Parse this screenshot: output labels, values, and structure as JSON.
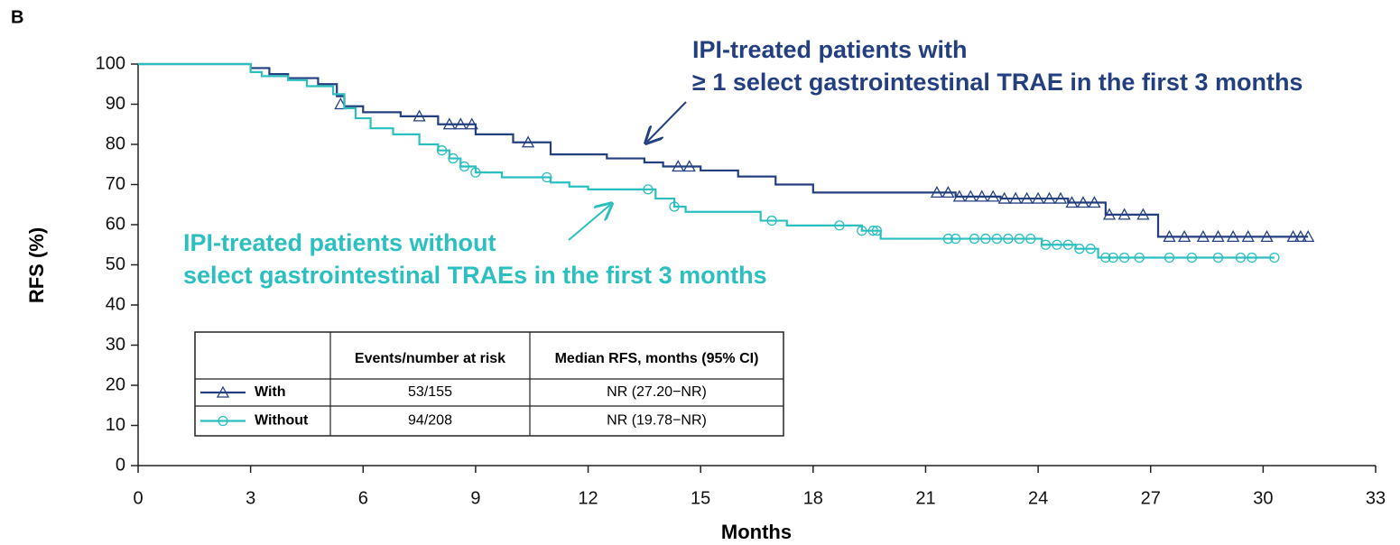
{
  "panel_label": "B",
  "chart_data": {
    "type": "line",
    "xlabel": "Months",
    "ylabel": "RFS (%)",
    "xlim": [
      0,
      33
    ],
    "ylim": [
      0,
      100
    ],
    "xticks": [
      0,
      3,
      6,
      9,
      12,
      15,
      18,
      21,
      24,
      27,
      30,
      33
    ],
    "yticks": [
      0,
      10,
      20,
      30,
      40,
      50,
      60,
      70,
      80,
      90,
      100
    ],
    "annotations": [
      {
        "lines": [
          "IPI-treated patients with",
          "≥ 1 select gastrointestinal TRAE in the first 3 months"
        ],
        "color": "#233f80"
      },
      {
        "lines": [
          "IPI-treated patients without",
          "select gastrointestinal TRAEs in the first 3 months"
        ],
        "color": "#2bbfbf"
      }
    ],
    "series": [
      {
        "name": "With",
        "color": "#233f80",
        "marker": "triangle",
        "x": [
          0,
          3,
          3,
          3.5,
          3.5,
          4,
          4,
          4.8,
          4.8,
          5.3,
          5.3,
          5.5,
          5.5,
          6,
          6,
          7,
          7,
          8,
          8,
          9,
          9,
          10,
          10,
          11,
          11,
          12.5,
          12.5,
          13.5,
          13.5,
          14,
          14,
          15,
          15,
          16,
          16,
          17,
          17,
          18,
          18,
          21.8,
          21.8,
          23,
          23,
          24.8,
          24.8,
          25.8,
          25.8,
          27.2,
          27.2,
          31.2
        ],
        "values": [
          100,
          100,
          99,
          99,
          97.5,
          97.5,
          96.5,
          96.5,
          95,
          95,
          92,
          92,
          89.5,
          89.5,
          88,
          88,
          87,
          87,
          85,
          85,
          82.5,
          82.5,
          80.5,
          80.5,
          77.5,
          77.5,
          76.5,
          76.5,
          75.5,
          75.5,
          74.5,
          74.5,
          73.5,
          73.5,
          72,
          72,
          70,
          70,
          68,
          68,
          67,
          67,
          66.5,
          66.5,
          65.5,
          65.5,
          62.5,
          62.5,
          57,
          57
        ],
        "censor_x": [
          5.4,
          7.5,
          8.3,
          8.6,
          8.9,
          10.4,
          14.4,
          14.7,
          21.3,
          21.6,
          21.9,
          22.2,
          22.5,
          22.8,
          23.1,
          23.4,
          23.7,
          24.0,
          24.3,
          24.6,
          24.9,
          25.2,
          25.5,
          25.9,
          26.3,
          26.8,
          27.5,
          27.9,
          28.4,
          28.8,
          29.2,
          29.6,
          30.1,
          30.8,
          31.0,
          31.2
        ],
        "censor_values": [
          90,
          87,
          85,
          85,
          85,
          80.5,
          74.5,
          74.5,
          68,
          68,
          67,
          67,
          67,
          67,
          66.5,
          66.5,
          66.5,
          66.5,
          66.5,
          66.5,
          65.5,
          65.5,
          65.5,
          62.5,
          62.5,
          62.5,
          57,
          57,
          57,
          57,
          57,
          57,
          57,
          57,
          57,
          57
        ]
      },
      {
        "name": "Without",
        "color": "#2bbfbf",
        "marker": "circle",
        "x": [
          0,
          3,
          3,
          3.3,
          3.3,
          4,
          4,
          4.5,
          4.5,
          5.2,
          5.2,
          5.5,
          5.5,
          5.8,
          5.8,
          6.2,
          6.2,
          6.8,
          6.8,
          7.5,
          7.5,
          8,
          8,
          8.3,
          8.3,
          8.6,
          8.6,
          9,
          9,
          9.7,
          9.7,
          11,
          11,
          11.5,
          11.5,
          12,
          12,
          13.8,
          13.8,
          14.3,
          14.3,
          14.6,
          14.6,
          16.6,
          16.6,
          17.3,
          17.3,
          19.3,
          19.3,
          19.8,
          19.8,
          24.1,
          24.1,
          25,
          25,
          25.6,
          25.6,
          30.3
        ],
        "values": [
          100,
          100,
          98,
          98,
          97,
          97,
          96,
          96,
          94.5,
          94.5,
          92.5,
          92.5,
          89,
          89,
          86.5,
          86.5,
          84,
          84,
          82.5,
          82.5,
          80,
          80,
          78.5,
          78.5,
          76.5,
          76.5,
          74.5,
          74.5,
          73,
          73,
          71.8,
          71.8,
          70.5,
          70.5,
          69.5,
          69.5,
          68.8,
          68.8,
          66.5,
          66.5,
          64.5,
          64.5,
          63.2,
          63.2,
          61,
          61,
          59.8,
          59.8,
          58.5,
          58.5,
          56.5,
          56.5,
          55,
          55,
          54,
          54,
          51.8,
          51.8
        ],
        "censor_x": [
          8.1,
          8.4,
          8.7,
          9.0,
          10.9,
          13.6,
          14.3,
          16.9,
          18.7,
          19.3,
          19.6,
          19.7,
          21.6,
          21.8,
          22.3,
          22.6,
          22.9,
          23.2,
          23.5,
          23.8,
          24.2,
          24.5,
          24.8,
          25.1,
          25.4,
          25.8,
          26.0,
          26.3,
          26.7,
          27.5,
          28.1,
          28.8,
          29.4,
          29.7,
          30.3
        ],
        "censor_values": [
          78.5,
          76.5,
          74.5,
          73,
          71.8,
          68.8,
          64.5,
          61,
          59.8,
          58.5,
          58.5,
          58.5,
          56.5,
          56.5,
          56.5,
          56.5,
          56.5,
          56.5,
          56.5,
          56.5,
          55,
          55,
          55,
          54,
          54,
          51.8,
          51.8,
          51.8,
          51.8,
          51.8,
          51.8,
          51.8,
          51.8,
          51.8,
          51.8
        ]
      }
    ]
  },
  "table": {
    "header": [
      "Events/number at risk",
      "Median RFS, months (95% CI)"
    ],
    "rows": [
      [
        "53/155",
        "NR (27.20−NR)"
      ],
      [
        "94/208",
        "NR (19.78−NR)"
      ]
    ]
  }
}
